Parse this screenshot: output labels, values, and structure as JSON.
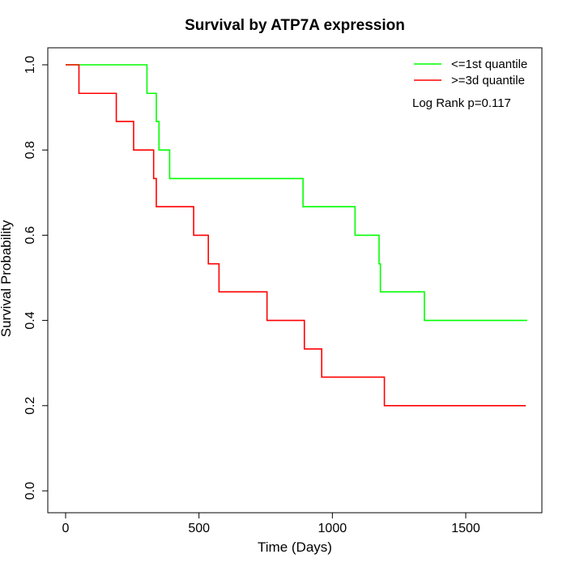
{
  "chart_data": {
    "type": "line",
    "subtype": "kaplan-meier step",
    "title": "Survival by ATP7A expression",
    "xlabel": "Time (Days)",
    "ylabel": "Survival Probability",
    "xlim": [
      0,
      1800
    ],
    "ylim": [
      0,
      1
    ],
    "xticks": [
      0,
      500,
      1000,
      1500
    ],
    "xtick_labels": [
      "0",
      "500",
      "1000",
      "1500"
    ],
    "yticks": [
      0,
      0.2,
      0.4,
      0.6,
      0.8,
      1.0
    ],
    "ytick_labels": [
      "0.0",
      "0.2",
      "0.4",
      "0.6",
      "0.8",
      "1.0"
    ],
    "grid": false,
    "legend_position": "top-right",
    "annotation": "Log Rank p=0.117",
    "series": [
      {
        "name": "<=1st quantile",
        "color": "#00ff00",
        "x": [
          0,
          305,
          340,
          350,
          390,
          890,
          1085,
          1175,
          1180,
          1345,
          1730
        ],
        "y": [
          1.0,
          0.933,
          0.867,
          0.8,
          0.733,
          0.667,
          0.6,
          0.533,
          0.467,
          0.4,
          0.4
        ]
      },
      {
        "name": ">=3d quantile",
        "color": "#ff0000",
        "x": [
          0,
          50,
          190,
          255,
          330,
          340,
          480,
          535,
          575,
          755,
          895,
          960,
          1195,
          1725
        ],
        "y": [
          1.0,
          0.933,
          0.867,
          0.8,
          0.733,
          0.667,
          0.6,
          0.533,
          0.467,
          0.4,
          0.333,
          0.267,
          0.2,
          0.2
        ]
      }
    ]
  }
}
